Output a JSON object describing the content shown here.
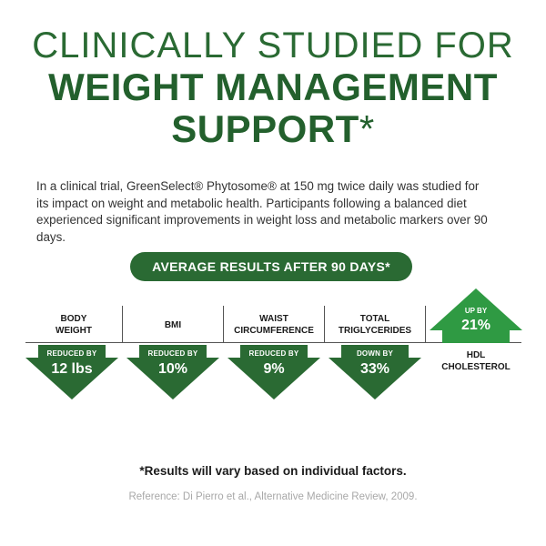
{
  "header": {
    "line1": "CLINICALLY STUDIED FOR",
    "line2": "WEIGHT MANAGEMENT",
    "line3": "SUPPORT",
    "asterisk": "*"
  },
  "intro": "In a clinical trial, GreenSelect® Phytosome® at 150 mg twice daily was studied for its impact on weight and metabolic health. Participants following a balanced diet experienced significant improvements in weight loss and metabolic markers over 90 days.",
  "banner": "AVERAGE RESULTS AFTER 90 DAYS*",
  "metrics": [
    {
      "label_line1": "BODY",
      "label_line2": "WEIGHT",
      "direction_label": "REDUCED BY",
      "value": "12 lbs"
    },
    {
      "label_line1": "BMI",
      "label_line2": "",
      "direction_label": "REDUCED BY",
      "value": "10%"
    },
    {
      "label_line1": "WAIST",
      "label_line2": "CIRCUMFERENCE",
      "direction_label": "REDUCED BY",
      "value": "9%"
    },
    {
      "label_line1": "TOTAL",
      "label_line2": "TRIGLYCERIDES",
      "direction_label": "DOWN BY",
      "value": "33%"
    },
    {
      "label_line1": "HDL",
      "label_line2": "CHOLESTEROL",
      "direction_label": "UP BY",
      "value": "21%"
    }
  ],
  "footnote": "*Results will vary based on individual factors.",
  "reference": "Reference: Di Pierro et al., Alternative Medicine Review, 2009.",
  "colors": {
    "brand_green": "#2a6a33",
    "text": "#1a1a1a",
    "muted": "#a8a8a8",
    "background": "#ffffff"
  }
}
